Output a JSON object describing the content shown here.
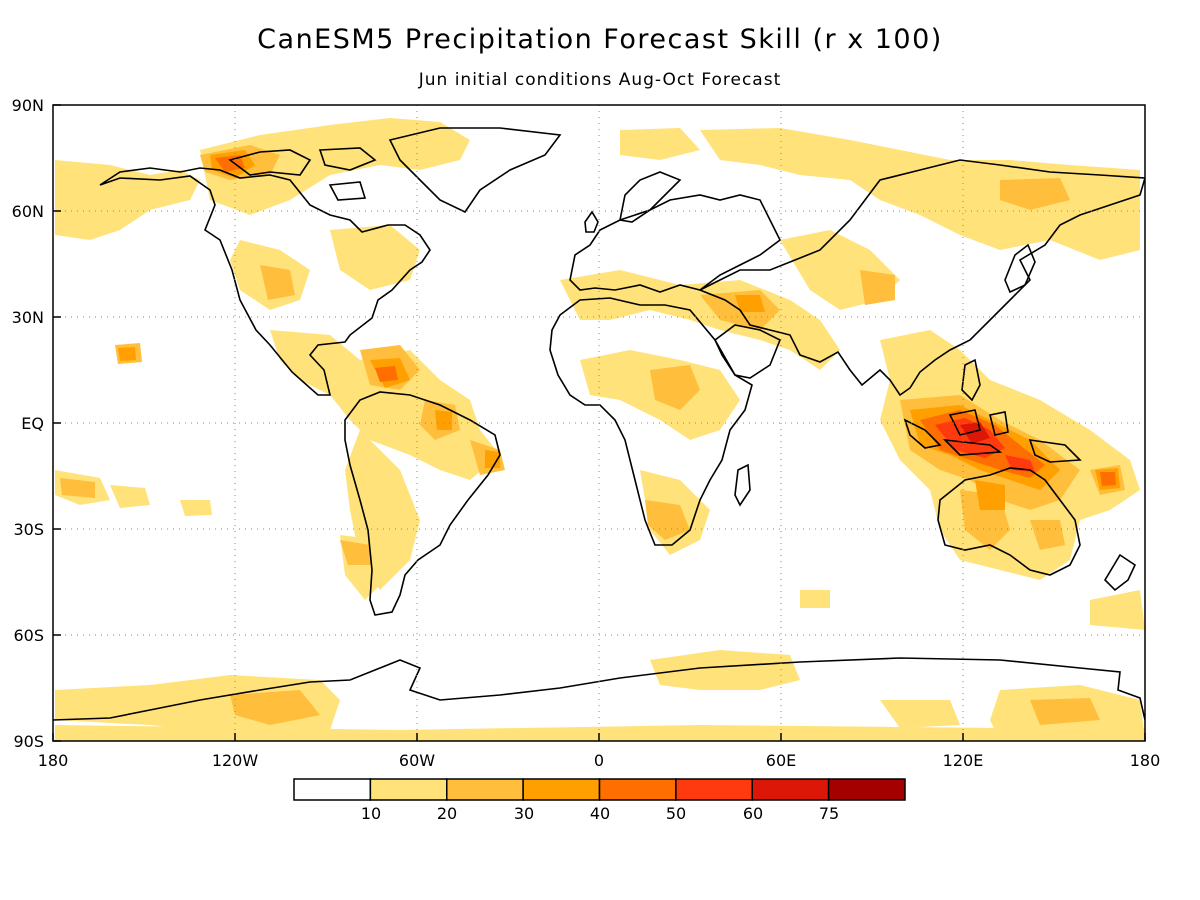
{
  "title": "CanESM5 Precipitation Forecast Skill (r x 100)",
  "subtitle": "Jun initial conditions  Aug-Oct Forecast",
  "lat_labels": [
    "90N",
    "60N",
    "30N",
    "EQ",
    "30S",
    "60S",
    "90S"
  ],
  "lon_labels": [
    "180",
    "120W",
    "60W",
    "0",
    "60E",
    "120E",
    "180"
  ],
  "colorbar": {
    "labels": [
      "10",
      "20",
      "30",
      "40",
      "50",
      "60",
      "75"
    ],
    "colors": [
      "#ffffff",
      "#ffe27a",
      "#ffbe3c",
      "#ffa000",
      "#ff6e00",
      "#ff3a0f",
      "#dc1708",
      "#a50000"
    ]
  },
  "map_data": {
    "type": "heatmap",
    "variable": "precipitation forecast skill (r x 100)",
    "x_range_deg": [
      -180,
      180
    ],
    "y_range_deg": [
      -90,
      90
    ],
    "grid": "dotted",
    "regions": [
      {
        "region": "Maritime Continent / Indonesia",
        "level": "60-75"
      },
      {
        "region": "Northern Australia",
        "level": "40-60"
      },
      {
        "region": "Western Pacific near 10S 170E",
        "level": "50-60"
      },
      {
        "region": "Equatorial Pacific near 20N 160W",
        "level": "50-60"
      },
      {
        "region": "Caribbean / northern South America",
        "level": "30-50"
      },
      {
        "region": "Northeast Brazil",
        "level": "30-50"
      },
      {
        "region": "Canadian Arctic Archipelago",
        "level": "40-60"
      },
      {
        "region": "Sahel / East Africa",
        "level": "20-40"
      },
      {
        "region": "Middle East / Arabian Peninsula",
        "level": "30-40"
      },
      {
        "region": "Southern Africa coast",
        "level": "20-30"
      },
      {
        "region": "Southern South America",
        "level": "20-40"
      },
      {
        "region": "Antarctic coastal belt",
        "level": "10-30"
      },
      {
        "region": "North Atlantic / Europe",
        "level": "10-20"
      },
      {
        "region": "Siberia / northern Asia",
        "level": "10-30"
      }
    ]
  }
}
